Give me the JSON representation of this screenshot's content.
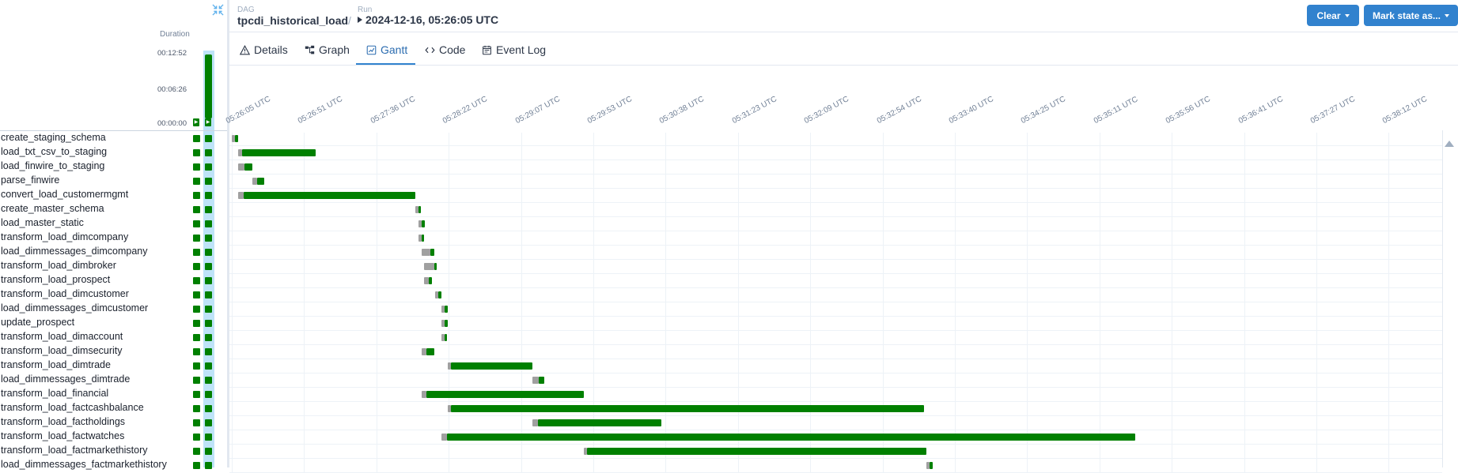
{
  "header": {
    "dag_label": "DAG",
    "dag_name": "tpcdi_historical_load",
    "run_label": "Run",
    "run_value": "2024-12-16, 05:26:05 UTC",
    "buttons": {
      "clear": "Clear",
      "mark_state": "Mark state as..."
    }
  },
  "tabs": [
    {
      "label": "Details",
      "icon": "alert-triangle-icon"
    },
    {
      "label": "Graph",
      "icon": "graph-icon"
    },
    {
      "label": "Gantt",
      "icon": "gantt-icon",
      "active": true
    },
    {
      "label": "Code",
      "icon": "code-icon"
    },
    {
      "label": "Event Log",
      "icon": "event-log-icon"
    }
  ],
  "duration": {
    "title": "Duration",
    "ticks": [
      "00:12:52",
      "00:06:26",
      "00:00:00"
    ],
    "run_duration": "00:12:52"
  },
  "time_axis": [
    "05:26:05 UTC",
    "05:26:51 UTC",
    "05:27:36 UTC",
    "05:28:22 UTC",
    "05:29:07 UTC",
    "05:29:53 UTC",
    "05:30:38 UTC",
    "05:31:23 UTC",
    "05:32:09 UTC",
    "05:32:54 UTC",
    "05:33:40 UTC",
    "05:34:25 UTC",
    "05:35:11 UTC",
    "05:35:56 UTC",
    "05:36:41 UTC",
    "05:37:27 UTC",
    "05:38:12 UTC"
  ],
  "status_color": "#008000",
  "queued_color": "#a0a0a0",
  "accent_color": "#3182ce",
  "tasks": [
    {
      "name": "create_staging_schema",
      "queue": [
        0,
        0.3
      ],
      "run": [
        0.3,
        0.6
      ]
    },
    {
      "name": "load_txt_csv_to_staging",
      "queue": [
        0.6,
        1.0
      ],
      "run": [
        1.0,
        8.0
      ]
    },
    {
      "name": "load_finwire_to_staging",
      "queue": [
        0.6,
        1.2
      ],
      "run": [
        1.2,
        2.0
      ]
    },
    {
      "name": "parse_finwire",
      "queue": [
        2.0,
        2.4
      ],
      "run": [
        2.4,
        3.1
      ]
    },
    {
      "name": "convert_load_customermgmt",
      "queue": [
        0.6,
        1.1
      ],
      "run": [
        1.1,
        17.6
      ]
    },
    {
      "name": "create_master_schema",
      "queue": [
        17.6,
        17.9
      ],
      "run": [
        17.9,
        18.1
      ]
    },
    {
      "name": "load_master_static",
      "queue": [
        17.9,
        18.2
      ],
      "run": [
        18.2,
        18.5
      ]
    },
    {
      "name": "transform_load_dimcompany",
      "queue": [
        17.9,
        18.2
      ],
      "run": [
        18.2,
        18.4
      ]
    },
    {
      "name": "load_dimmessages_dimcompany",
      "queue": [
        18.2,
        19.0
      ],
      "run": [
        19.0,
        19.4
      ]
    },
    {
      "name": "transform_load_dimbroker",
      "queue": [
        18.4,
        19.4
      ],
      "run": [
        19.4,
        19.6
      ]
    },
    {
      "name": "transform_load_prospect",
      "queue": [
        18.4,
        18.9
      ],
      "run": [
        18.9,
        19.2
      ]
    },
    {
      "name": "transform_load_dimcustomer",
      "queue": [
        19.5,
        19.8
      ],
      "run": [
        19.8,
        20.1
      ]
    },
    {
      "name": "load_dimmessages_dimcustomer",
      "queue": [
        20.1,
        20.4
      ],
      "run": [
        20.4,
        20.7
      ]
    },
    {
      "name": "update_prospect",
      "queue": [
        20.1,
        20.4
      ],
      "run": [
        20.4,
        20.7
      ]
    },
    {
      "name": "transform_load_dimaccount",
      "queue": [
        20.1,
        20.4
      ],
      "run": [
        20.4,
        20.6
      ]
    },
    {
      "name": "transform_load_dimsecurity",
      "queue": [
        18.2,
        18.6
      ],
      "run": [
        18.6,
        19.4
      ]
    },
    {
      "name": "transform_load_dimtrade",
      "queue": [
        20.7,
        21.0
      ],
      "run": [
        21.0,
        28.8
      ]
    },
    {
      "name": "load_dimmessages_dimtrade",
      "queue": [
        28.8,
        29.4
      ],
      "run": [
        29.4,
        29.9
      ]
    },
    {
      "name": "transform_load_financial",
      "queue": [
        18.2,
        18.6
      ],
      "run": [
        18.6,
        33.7
      ]
    },
    {
      "name": "transform_load_factcashbalance",
      "queue": [
        20.7,
        21.0
      ],
      "run": [
        21.0,
        66.3
      ]
    },
    {
      "name": "transform_load_factholdings",
      "queue": [
        28.8,
        29.3
      ],
      "run": [
        29.3,
        41.1
      ]
    },
    {
      "name": "transform_load_factwatches",
      "queue": [
        20.1,
        20.6
      ],
      "run": [
        20.6,
        86.5
      ]
    },
    {
      "name": "transform_load_factmarkethistory",
      "queue": [
        33.7,
        34.0
      ],
      "run": [
        34.0,
        66.5
      ]
    },
    {
      "name": "load_dimmessages_factmarkethistory",
      "queue": [
        66.5,
        66.8
      ],
      "run": [
        66.8,
        67.1
      ]
    }
  ]
}
